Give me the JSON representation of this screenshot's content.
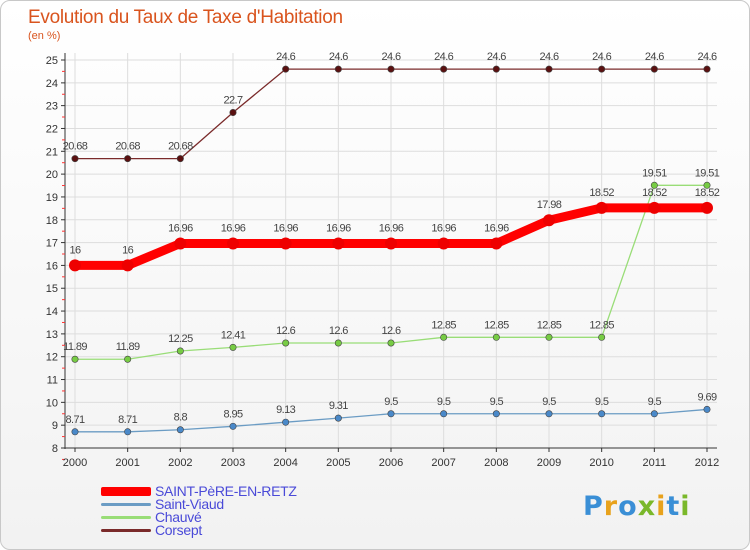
{
  "title": "Evolution du Taux de Taxe d'Habitation",
  "subtitle": "(en %)",
  "logo": {
    "letters": [
      "P",
      "r",
      "o",
      "x",
      "i",
      "t",
      "i"
    ],
    "colors": [
      "#3a8fd6",
      "#e8a21c",
      "#3a8fd6",
      "#7ab82a",
      "#e8a21c",
      "#3a8fd6",
      "#7ab82a"
    ]
  },
  "chart_data": {
    "type": "line",
    "title": "Evolution du Taux de Taxe d'Habitation",
    "ylabel": "(en %)",
    "xlabel": "",
    "categories": [
      "2000",
      "2001",
      "2002",
      "2003",
      "2004",
      "2005",
      "2006",
      "2007",
      "2008",
      "2009",
      "2010",
      "2011",
      "2012"
    ],
    "ylim": [
      8,
      25
    ],
    "yticks": [
      8,
      9,
      10,
      11,
      12,
      13,
      14,
      15,
      16,
      17,
      18,
      19,
      20,
      21,
      22,
      23,
      24,
      25
    ],
    "legend_position": "bottom-left",
    "series": [
      {
        "name": "Corsept",
        "color": "#7a2a2a",
        "marker": "#5a1010",
        "width": 1.3,
        "labelPos": "above",
        "values": [
          20.68,
          20.68,
          20.68,
          22.7,
          24.6,
          24.6,
          24.6,
          24.6,
          24.6,
          24.6,
          24.6,
          24.6,
          24.6
        ],
        "labels": [
          "20.68",
          "20.68",
          "20.68",
          "22.7",
          "24.6",
          "24.6",
          "24.6",
          "24.6",
          "24.6",
          "24.6",
          "24.6",
          "24.6",
          "24.6"
        ]
      },
      {
        "name": "Chauvé",
        "color": "#99dd77",
        "marker": "#77cc44",
        "width": 1.3,
        "labelPos": "above",
        "values": [
          11.89,
          11.89,
          12.25,
          12.41,
          12.6,
          12.6,
          12.6,
          12.85,
          12.85,
          12.85,
          12.85,
          19.51,
          19.51
        ],
        "labels": [
          "11.89",
          "11.89",
          "12.25",
          "12.41",
          "12.6",
          "12.6",
          "12.6",
          "12.85",
          "12.85",
          "12.85",
          "12.85",
          "19.51",
          "19.51"
        ]
      },
      {
        "name": "Saint-Viaud",
        "color": "#6b9cc4",
        "marker": "#4a89c9",
        "width": 1.3,
        "labelPos": "above",
        "values": [
          8.71,
          8.71,
          8.8,
          8.95,
          9.13,
          9.31,
          9.5,
          9.5,
          9.5,
          9.5,
          9.5,
          9.5,
          9.69
        ],
        "labels": [
          "8.71",
          "8.71",
          "8.8",
          "8.95",
          "9.13",
          "9.31",
          "9.5",
          "9.5",
          "9.5",
          "9.5",
          "9.5",
          "9.5",
          "9.69"
        ]
      },
      {
        "name": "SAINT-PèRE-EN-RETZ",
        "color": "#ff0000",
        "marker": "#ee0000",
        "width": 9,
        "labelPos": "above",
        "values": [
          16,
          16,
          16.96,
          16.96,
          16.96,
          16.96,
          16.96,
          16.96,
          16.96,
          17.98,
          18.52,
          18.52,
          18.52
        ],
        "labels": [
          "16",
          "16",
          "16.96",
          "16.96",
          "16.96",
          "16.96",
          "16.96",
          "16.96",
          "16.96",
          "17.98",
          "18.52",
          "18.52",
          "18.52"
        ]
      }
    ],
    "legend": [
      {
        "name": "SAINT-PèRE-EN-RETZ",
        "color": "#ff0000",
        "thickness": 9
      },
      {
        "name": "Saint-Viaud",
        "color": "#6b9cc4",
        "thickness": 3
      },
      {
        "name": "Chauvé",
        "color": "#99dd77",
        "thickness": 3
      },
      {
        "name": "Corsept",
        "color": "#7a2a2a",
        "thickness": 3
      }
    ]
  }
}
